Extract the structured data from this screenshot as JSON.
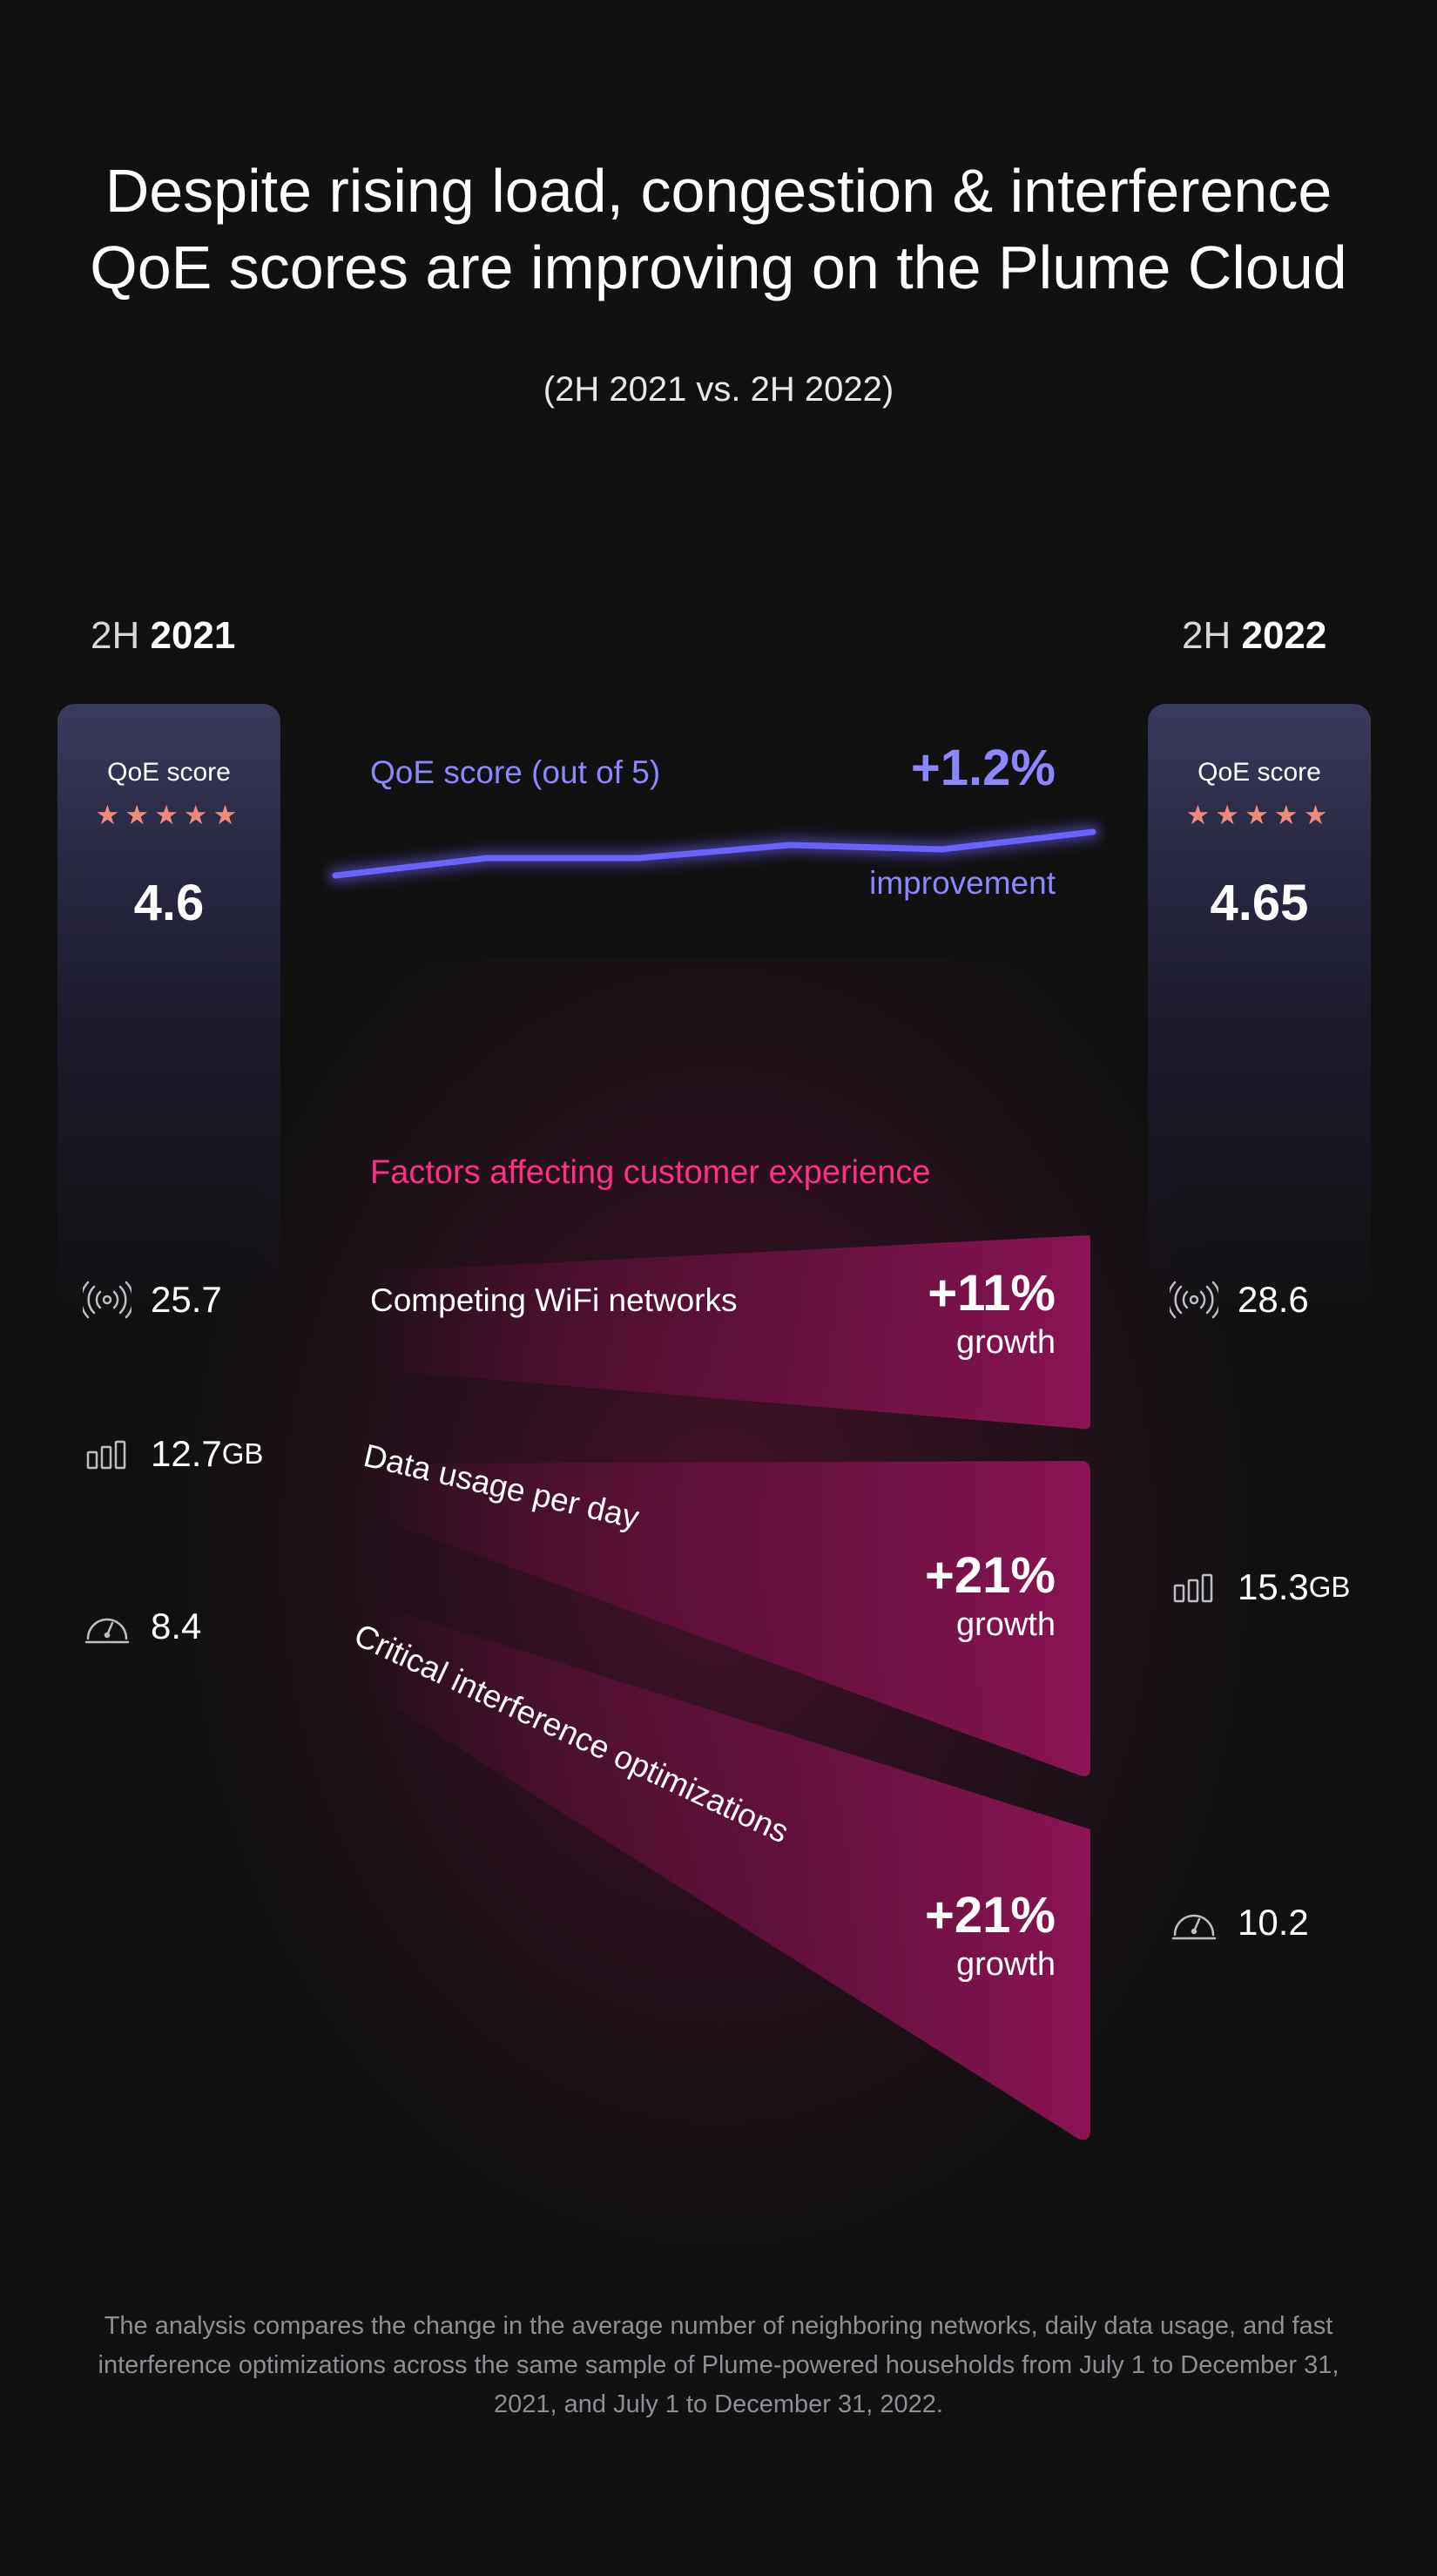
{
  "header": {
    "title_line1": "Despite rising load, congestion & interference",
    "title_line2": "QoE scores are improving on the Plume Cloud",
    "subtitle": "(2H 2021 vs. 2H 2022)"
  },
  "columns": {
    "left": {
      "half": "2H",
      "year": "2021",
      "qoe_label": "QoE score",
      "stars": "★★★★★",
      "score": "4.6"
    },
    "right": {
      "half": "2H",
      "year": "2022",
      "qoe_label": "QoE score",
      "stars": "★★★★★",
      "score": "4.65"
    }
  },
  "qoe_line": {
    "label": "QoE score (out of 5)",
    "change": "+1.2%",
    "change_label": "improvement",
    "color": "#6b63ff",
    "values": [
      4.6,
      4.62,
      4.62,
      4.635,
      4.63,
      4.65
    ]
  },
  "factors": {
    "title": "Factors affecting customer experience",
    "items": [
      {
        "label": "Competing WiFi networks",
        "change": "+11%",
        "change_label": "growth"
      },
      {
        "label": "Data usage per day",
        "change": "+21%",
        "change_label": "growth"
      },
      {
        "label": "Critical interference optimizations",
        "change": "+21%",
        "change_label": "growth"
      }
    ]
  },
  "metrics": {
    "left": [
      {
        "icon": "wifi-signal-icon",
        "value": "25.7",
        "unit": ""
      },
      {
        "icon": "bars-icon",
        "value": "12.7",
        "unit": "GB"
      },
      {
        "icon": "gauge-icon",
        "value": "8.4",
        "unit": ""
      }
    ],
    "right": [
      {
        "icon": "wifi-signal-icon",
        "value": "28.6",
        "unit": ""
      },
      {
        "icon": "bars-icon",
        "value": "15.3",
        "unit": "GB"
      },
      {
        "icon": "gauge-icon",
        "value": "10.2",
        "unit": ""
      }
    ]
  },
  "colors": {
    "background": "#121112",
    "accent_pink": "#ff2f86",
    "accent_purple": "#8d87ff",
    "stars": "#f08a78"
  },
  "footnote": "The analysis compares the change in the average number of neighboring networks, daily data usage, and fast interference optimizations across the same sample of Plume-powered households from July 1 to December 31, 2021, and July 1 to December 31, 2022."
}
